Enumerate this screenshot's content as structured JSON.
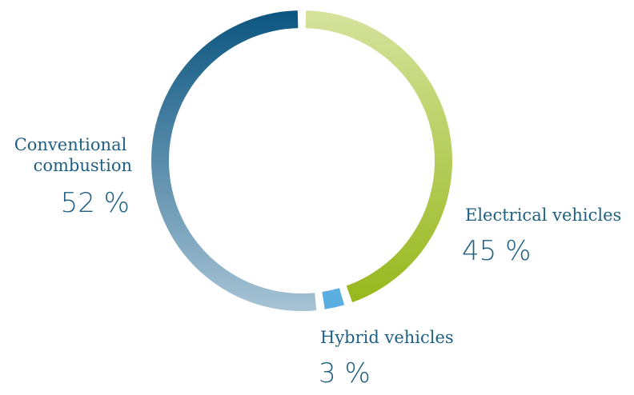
{
  "chart_data": {
    "type": "pie",
    "variant": "donut",
    "slices": [
      {
        "label": "Electrical vehicles",
        "value": 45,
        "value_text": "45 %",
        "color_start": "#d5e39d",
        "color_end": "#97b81c"
      },
      {
        "label": "Hybrid vehicles",
        "value": 3,
        "value_text": "3 %",
        "color_start": "#5aaee0",
        "color_end": "#5aaee0"
      },
      {
        "label": "Conventional combustion",
        "label_lines": [
          "Conventional",
          "combustion"
        ],
        "value": 52,
        "value_text": "52 %",
        "color_start": "#a7c3d5",
        "color_end": "#0b5580"
      }
    ],
    "legend": "none",
    "text_color": "#1f5f83"
  }
}
